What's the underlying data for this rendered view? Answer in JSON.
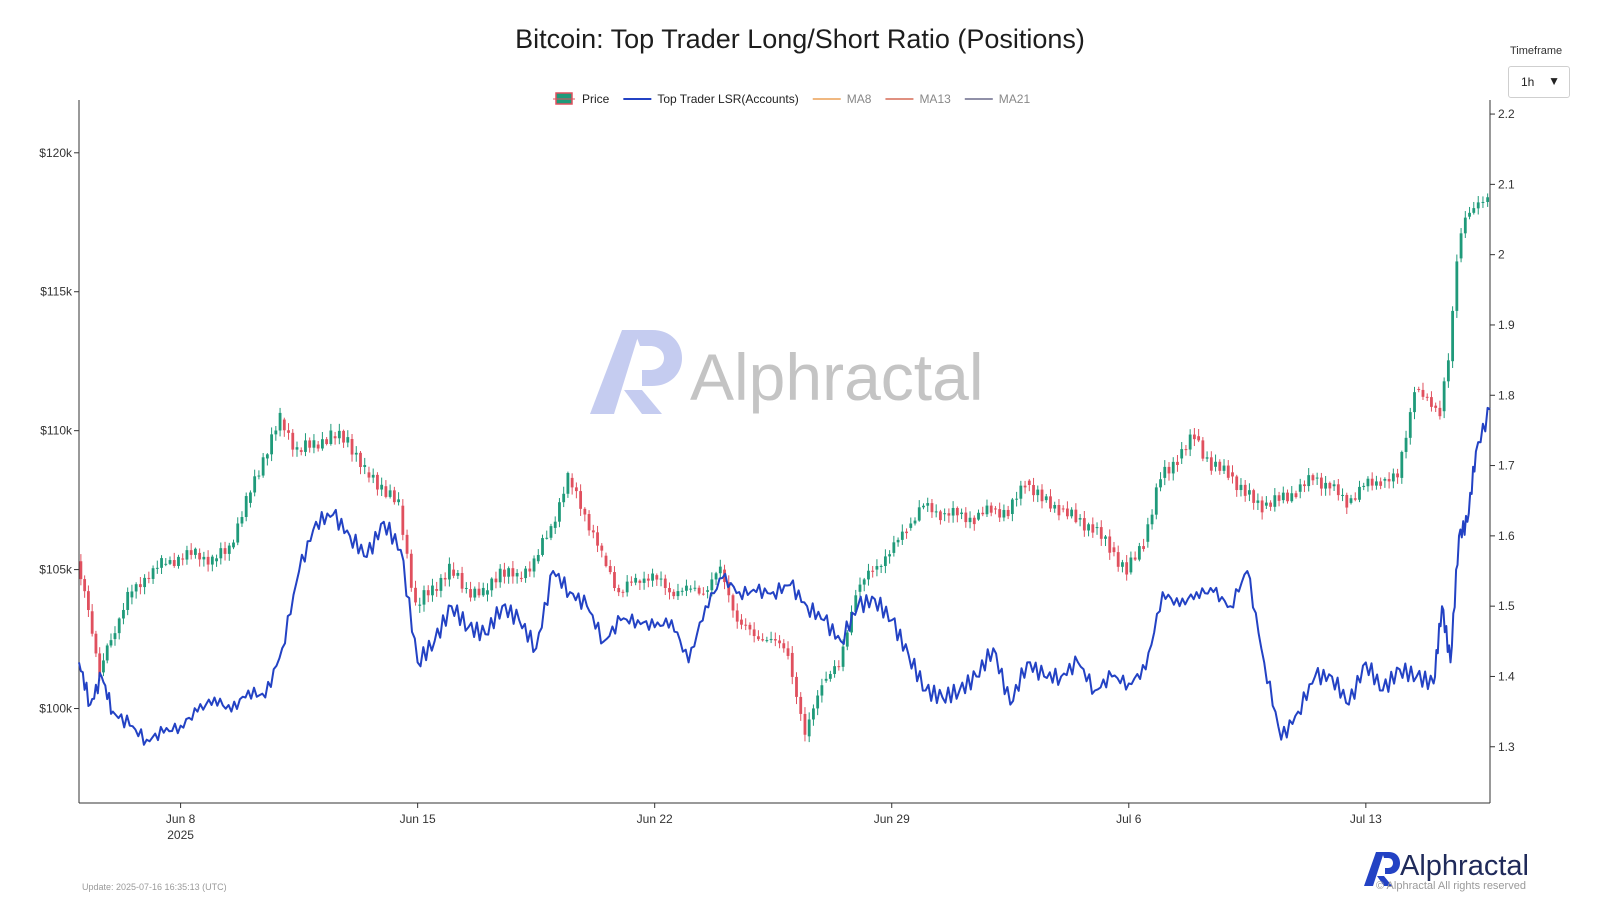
{
  "header": {
    "title": "Bitcoin: Top Trader Long/Short Ratio (Positions)"
  },
  "timeframe": {
    "label": "Timeframe",
    "value": "1h"
  },
  "watermark": {
    "text": "Alphractal"
  },
  "footer": {
    "update": "Update: 2025-07-16 16:35:13 (UTC)",
    "brand": "Alphractal",
    "copyright": "© Alphractal All rights reserved"
  },
  "colors": {
    "up": "#1f9a7a",
    "down": "#e0505e",
    "lsr": "#2342c4",
    "ma8": "#f0b880",
    "ma13": "#e09080",
    "ma21": "#9090a8",
    "axis": "#333333",
    "watermark_mark": "#c5ccf0",
    "watermark_text": "#c4c4c4"
  },
  "chart_data": {
    "type": "line",
    "title": "Bitcoin: Top Trader Long/Short Ratio (Positions)",
    "x_range": [
      "2025-06-05",
      "2025-07-16T16:00"
    ],
    "x_ticks": [
      {
        "date": "2025-06-08",
        "label": "Jun 8",
        "sublabel": "2025"
      },
      {
        "date": "2025-06-15",
        "label": "Jun 15"
      },
      {
        "date": "2025-06-22",
        "label": "Jun 22"
      },
      {
        "date": "2025-06-29",
        "label": "Jun 29"
      },
      {
        "date": "2025-07-06",
        "label": "Jul 6"
      },
      {
        "date": "2025-07-13",
        "label": "Jul 13"
      }
    ],
    "y_left": {
      "range": [
        96600,
        121900
      ],
      "ticks": [
        100000,
        105000,
        110000,
        115000,
        120000
      ],
      "tick_labels": [
        "$100k",
        "$105k",
        "$110k",
        "$115k",
        "$120k"
      ]
    },
    "y_right": {
      "range": [
        1.22,
        2.22
      ],
      "ticks": [
        1.3,
        1.4,
        1.5,
        1.6,
        1.7,
        1.8,
        1.9,
        2.0,
        2.1,
        2.2
      ],
      "tick_labels": [
        "1.3",
        "1.4",
        "1.5",
        "1.6",
        "1.7",
        "1.8",
        "1.9",
        "2",
        "2.1",
        "2.2"
      ]
    },
    "legend": [
      {
        "name": "Price",
        "kind": "candle"
      },
      {
        "name": "Top Trader LSR(Accounts)",
        "kind": "line",
        "color": "lsr"
      },
      {
        "name": "MA8",
        "kind": "line",
        "color": "ma8"
      },
      {
        "name": "MA13",
        "kind": "line",
        "color": "ma13"
      },
      {
        "name": "MA21",
        "kind": "line",
        "color": "ma21"
      }
    ],
    "series": [
      {
        "name": "Price",
        "axis": "left",
        "style": "candlestick",
        "points": [
          [
            "2025-06-05T00:00",
            105300
          ],
          [
            "2025-06-05T08:00",
            103500
          ],
          [
            "2025-06-05T16:00",
            101300
          ],
          [
            "2025-06-06T00:00",
            102500
          ],
          [
            "2025-06-06T12:00",
            104000
          ],
          [
            "2025-06-07T00:00",
            104700
          ],
          [
            "2025-06-07T12:00",
            105200
          ],
          [
            "2025-06-08T00:00",
            105400
          ],
          [
            "2025-06-08T12:00",
            105600
          ],
          [
            "2025-06-09T00:00",
            105300
          ],
          [
            "2025-06-09T12:00",
            105800
          ],
          [
            "2025-06-10T00:00",
            107400
          ],
          [
            "2025-06-10T12:00",
            109000
          ],
          [
            "2025-06-11T00:00",
            110400
          ],
          [
            "2025-06-11T12:00",
            109300
          ],
          [
            "2025-06-12T00:00",
            109500
          ],
          [
            "2025-06-12T12:00",
            109800
          ],
          [
            "2025-06-13T00:00",
            109700
          ],
          [
            "2025-06-13T12:00",
            108500
          ],
          [
            "2025-06-14T00:00",
            108000
          ],
          [
            "2025-06-14T12:00",
            107300
          ],
          [
            "2025-06-15T00:00",
            103700
          ],
          [
            "2025-06-15T12:00",
            104300
          ],
          [
            "2025-06-16T00:00",
            105000
          ],
          [
            "2025-06-16T12:00",
            104300
          ],
          [
            "2025-06-17T00:00",
            104100
          ],
          [
            "2025-06-17T12:00",
            105000
          ],
          [
            "2025-06-18T00:00",
            104700
          ],
          [
            "2025-06-18T12:00",
            105300
          ],
          [
            "2025-06-19T00:00",
            106500
          ],
          [
            "2025-06-19T12:00",
            108300
          ],
          [
            "2025-06-20T00:00",
            107000
          ],
          [
            "2025-06-20T12:00",
            105500
          ],
          [
            "2025-06-21T00:00",
            104200
          ],
          [
            "2025-06-21T12:00",
            104600
          ],
          [
            "2025-06-22T00:00",
            104800
          ],
          [
            "2025-06-22T12:00",
            104200
          ],
          [
            "2025-06-23T00:00",
            104300
          ],
          [
            "2025-06-23T12:00",
            104200
          ],
          [
            "2025-06-24T00:00",
            105000
          ],
          [
            "2025-06-24T12:00",
            103200
          ],
          [
            "2025-06-25T00:00",
            102600
          ],
          [
            "2025-06-25T12:00",
            102500
          ],
          [
            "2025-06-26T00:00",
            102000
          ],
          [
            "2025-06-26T12:00",
            99000
          ],
          [
            "2025-06-27T00:00",
            101000
          ],
          [
            "2025-06-27T12:00",
            101500
          ],
          [
            "2025-06-28T00:00",
            104200
          ],
          [
            "2025-06-28T12:00",
            105000
          ],
          [
            "2025-06-29T00:00",
            105600
          ],
          [
            "2025-06-29T12:00",
            106500
          ],
          [
            "2025-06-30T00:00",
            107300
          ],
          [
            "2025-06-30T12:00",
            107000
          ],
          [
            "2025-07-01T00:00",
            107000
          ],
          [
            "2025-07-01T12:00",
            106800
          ],
          [
            "2025-07-02T00:00",
            107200
          ],
          [
            "2025-07-02T12:00",
            107000
          ],
          [
            "2025-07-03T00:00",
            108200
          ],
          [
            "2025-07-03T12:00",
            107500
          ],
          [
            "2025-07-04T00:00",
            107200
          ],
          [
            "2025-07-04T12:00",
            106800
          ],
          [
            "2025-07-05T00:00",
            106500
          ],
          [
            "2025-07-05T12:00",
            105800
          ],
          [
            "2025-07-06T00:00",
            104900
          ],
          [
            "2025-07-06T12:00",
            106000
          ],
          [
            "2025-07-07T00:00",
            108300
          ],
          [
            "2025-07-07T12:00",
            109000
          ],
          [
            "2025-07-08T00:00",
            109800
          ],
          [
            "2025-07-08T12:00",
            108700
          ],
          [
            "2025-07-09T00:00",
            108500
          ],
          [
            "2025-07-09T12:00",
            107700
          ],
          [
            "2025-07-10T00:00",
            107300
          ],
          [
            "2025-07-10T12:00",
            107500
          ],
          [
            "2025-07-11T00:00",
            107800
          ],
          [
            "2025-07-11T12:00",
            108300
          ],
          [
            "2025-07-12T00:00",
            108000
          ],
          [
            "2025-07-12T12:00",
            107400
          ],
          [
            "2025-07-13T00:00",
            108000
          ],
          [
            "2025-07-13T12:00",
            108200
          ],
          [
            "2025-07-14T00:00",
            108300
          ],
          [
            "2025-07-14T12:00",
            111500
          ],
          [
            "2025-07-15T00:00",
            110900
          ],
          [
            "2025-07-15T06:00",
            110700
          ],
          [
            "2025-07-15T12:00",
            112500
          ],
          [
            "2025-07-15T18:00",
            116200
          ],
          [
            "2025-07-16T00:00",
            117700
          ],
          [
            "2025-07-16T06:00",
            118000
          ],
          [
            "2025-07-16T16:00",
            118500
          ]
        ]
      },
      {
        "name": "Top Trader LSR(Accounts)",
        "axis": "right",
        "style": "line",
        "points": [
          [
            "2025-06-05T00:00",
            1.42
          ],
          [
            "2025-06-05T08:00",
            1.36
          ],
          [
            "2025-06-05T16:00",
            1.4
          ],
          [
            "2025-06-06T00:00",
            1.35
          ],
          [
            "2025-06-06T12:00",
            1.33
          ],
          [
            "2025-06-07T00:00",
            1.31
          ],
          [
            "2025-06-07T12:00",
            1.32
          ],
          [
            "2025-06-08T00:00",
            1.33
          ],
          [
            "2025-06-08T12:00",
            1.35
          ],
          [
            "2025-06-09T00:00",
            1.37
          ],
          [
            "2025-06-09T12:00",
            1.35
          ],
          [
            "2025-06-10T00:00",
            1.38
          ],
          [
            "2025-06-10T12:00",
            1.37
          ],
          [
            "2025-06-11T00:00",
            1.44
          ],
          [
            "2025-06-11T12:00",
            1.55
          ],
          [
            "2025-06-12T00:00",
            1.62
          ],
          [
            "2025-06-12T12:00",
            1.63
          ],
          [
            "2025-06-13T00:00",
            1.6
          ],
          [
            "2025-06-13T12:00",
            1.57
          ],
          [
            "2025-06-14T00:00",
            1.62
          ],
          [
            "2025-06-14T12:00",
            1.58
          ],
          [
            "2025-06-15T00:00",
            1.42
          ],
          [
            "2025-06-15T12:00",
            1.45
          ],
          [
            "2025-06-16T00:00",
            1.5
          ],
          [
            "2025-06-16T12:00",
            1.47
          ],
          [
            "2025-06-17T00:00",
            1.46
          ],
          [
            "2025-06-17T12:00",
            1.5
          ],
          [
            "2025-06-18T00:00",
            1.48
          ],
          [
            "2025-06-18T12:00",
            1.44
          ],
          [
            "2025-06-19T00:00",
            1.55
          ],
          [
            "2025-06-19T12:00",
            1.52
          ],
          [
            "2025-06-20T00:00",
            1.5
          ],
          [
            "2025-06-20T12:00",
            1.45
          ],
          [
            "2025-06-21T00:00",
            1.48
          ],
          [
            "2025-06-21T12:00",
            1.48
          ],
          [
            "2025-06-22T00:00",
            1.47
          ],
          [
            "2025-06-22T12:00",
            1.48
          ],
          [
            "2025-06-23T00:00",
            1.42
          ],
          [
            "2025-06-23T12:00",
            1.5
          ],
          [
            "2025-06-24T00:00",
            1.54
          ],
          [
            "2025-06-24T12:00",
            1.52
          ],
          [
            "2025-06-25T00:00",
            1.52
          ],
          [
            "2025-06-25T12:00",
            1.52
          ],
          [
            "2025-06-26T00:00",
            1.53
          ],
          [
            "2025-06-26T12:00",
            1.5
          ],
          [
            "2025-06-27T00:00",
            1.48
          ],
          [
            "2025-06-27T12:00",
            1.45
          ],
          [
            "2025-06-28T00:00",
            1.5
          ],
          [
            "2025-06-28T12:00",
            1.51
          ],
          [
            "2025-06-29T00:00",
            1.48
          ],
          [
            "2025-06-29T12:00",
            1.43
          ],
          [
            "2025-06-30T00:00",
            1.38
          ],
          [
            "2025-06-30T12:00",
            1.37
          ],
          [
            "2025-07-01T00:00",
            1.38
          ],
          [
            "2025-07-01T12:00",
            1.4
          ],
          [
            "2025-07-02T00:00",
            1.44
          ],
          [
            "2025-07-02T12:00",
            1.36
          ],
          [
            "2025-07-03T00:00",
            1.42
          ],
          [
            "2025-07-03T12:00",
            1.4
          ],
          [
            "2025-07-04T00:00",
            1.4
          ],
          [
            "2025-07-04T12:00",
            1.42
          ],
          [
            "2025-07-05T00:00",
            1.38
          ],
          [
            "2025-07-05T12:00",
            1.4
          ],
          [
            "2025-07-06T00:00",
            1.39
          ],
          [
            "2025-07-06T12:00",
            1.41
          ],
          [
            "2025-07-07T00:00",
            1.52
          ],
          [
            "2025-07-07T12:00",
            1.5
          ],
          [
            "2025-07-08T00:00",
            1.52
          ],
          [
            "2025-07-08T12:00",
            1.52
          ],
          [
            "2025-07-09T00:00",
            1.5
          ],
          [
            "2025-07-09T12:00",
            1.55
          ],
          [
            "2025-07-10T00:00",
            1.42
          ],
          [
            "2025-07-10T12:00",
            1.31
          ],
          [
            "2025-07-11T00:00",
            1.35
          ],
          [
            "2025-07-11T12:00",
            1.4
          ],
          [
            "2025-07-12T00:00",
            1.4
          ],
          [
            "2025-07-12T12:00",
            1.36
          ],
          [
            "2025-07-13T00:00",
            1.42
          ],
          [
            "2025-07-13T12:00",
            1.38
          ],
          [
            "2025-07-14T00:00",
            1.41
          ],
          [
            "2025-07-14T12:00",
            1.4
          ],
          [
            "2025-07-15T00:00",
            1.39
          ],
          [
            "2025-07-15T06:00",
            1.5
          ],
          [
            "2025-07-15T12:00",
            1.42
          ],
          [
            "2025-07-15T18:00",
            1.6
          ],
          [
            "2025-07-16T00:00",
            1.62
          ],
          [
            "2025-07-16T06:00",
            1.72
          ],
          [
            "2025-07-16T16:00",
            1.78
          ]
        ]
      }
    ],
    "grid": false,
    "legend_position": "top-center"
  }
}
